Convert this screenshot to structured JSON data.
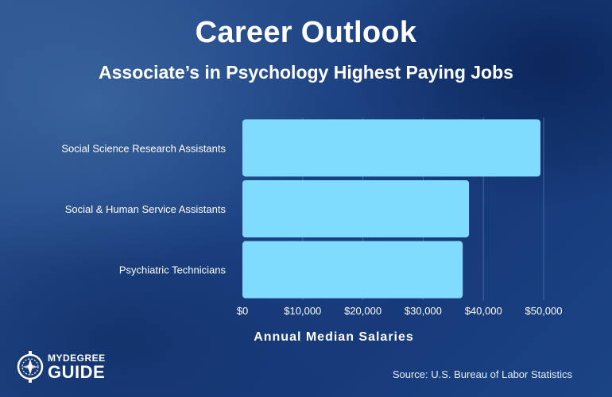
{
  "header": {
    "title": "Career Outlook",
    "subtitle": "Associate’s in Psychology Highest Paying Jobs"
  },
  "colors": {
    "bar": "#7fdcff",
    "grid": "#3e6aa0",
    "label": "#ffffff"
  },
  "chart_data": {
    "type": "bar",
    "orientation": "horizontal",
    "title": "Associate’s in Psychology Highest Paying Jobs",
    "categories": [
      "Social Science Research Assistants",
      "Social & Human Service Assistants",
      "Psychiatric Technicians"
    ],
    "values": [
      49470,
      37610,
      36570
    ],
    "xlabel": "Annual Median Salaries",
    "ylabel": "",
    "xlim": [
      0,
      50000
    ],
    "ticks": [
      "$0",
      "$10,000",
      "$20,000",
      "$30,000",
      "$40,000",
      "$50,000"
    ],
    "tick_values": [
      0,
      10000,
      20000,
      30000,
      40000,
      50000
    ],
    "grid": true,
    "legend": "none"
  },
  "footer": {
    "source": "Source: U.S. Bureau of Labor Statistics",
    "logo_top": "MYDEGREE",
    "logo_bottom": "GUIDE"
  },
  "icons": {
    "logo": "compass-icon"
  }
}
